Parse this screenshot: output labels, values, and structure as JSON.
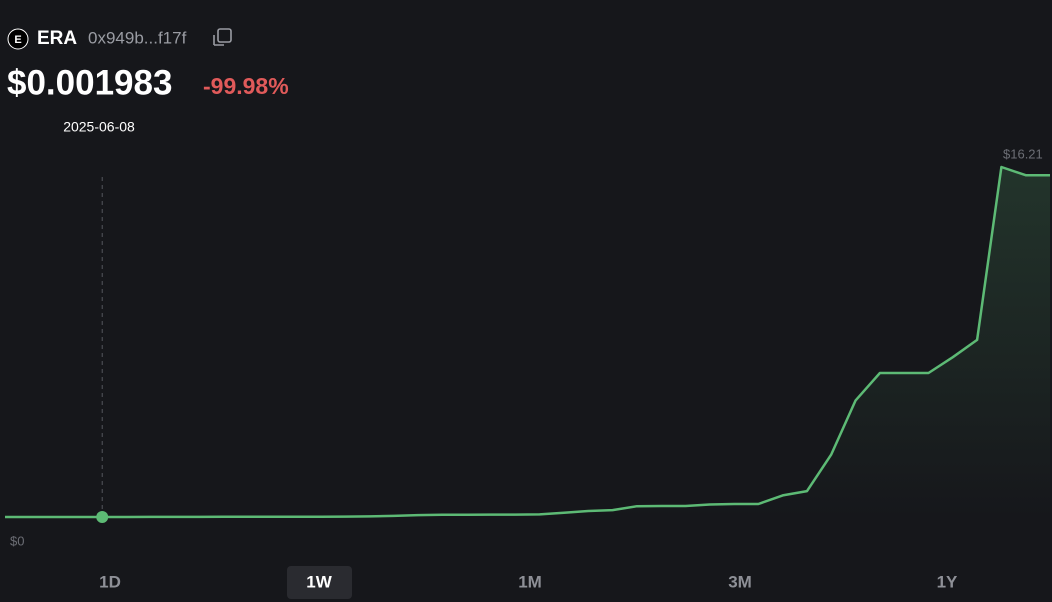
{
  "header": {
    "icon": "E",
    "symbol": "ERA",
    "address": "0x949b...f17f",
    "price": "$0.001983",
    "change": "-99.98%"
  },
  "chart_data": {
    "type": "line",
    "values": [
      0.001983,
      0.001983,
      0.001983,
      0.001983,
      0.001983,
      0.002,
      0.003,
      0.004,
      0.005,
      0.007,
      0.008,
      0.01,
      0.012,
      0.015,
      0.02,
      0.03,
      0.05,
      0.09,
      0.1,
      0.1,
      0.11,
      0.11,
      0.12,
      0.2,
      0.28,
      0.32,
      0.5,
      0.51,
      0.51,
      0.58,
      0.6,
      0.6,
      1.0,
      1.2,
      2.9,
      5.4,
      6.67,
      6.67,
      6.67,
      7.4,
      8.2,
      16.21,
      15.83,
      15.83
    ],
    "color": "#5dba75",
    "ylim": [
      0,
      16.21
    ],
    "yticks": [
      {
        "value": 0,
        "label": "$0"
      },
      {
        "value": 16.21,
        "label": "$16.21"
      }
    ],
    "hover_index": 4,
    "hover_date": "2025-06-08"
  },
  "timeframes": {
    "options": [
      "1D",
      "1W",
      "1M",
      "3M",
      "1Y"
    ],
    "selected": 1
  }
}
